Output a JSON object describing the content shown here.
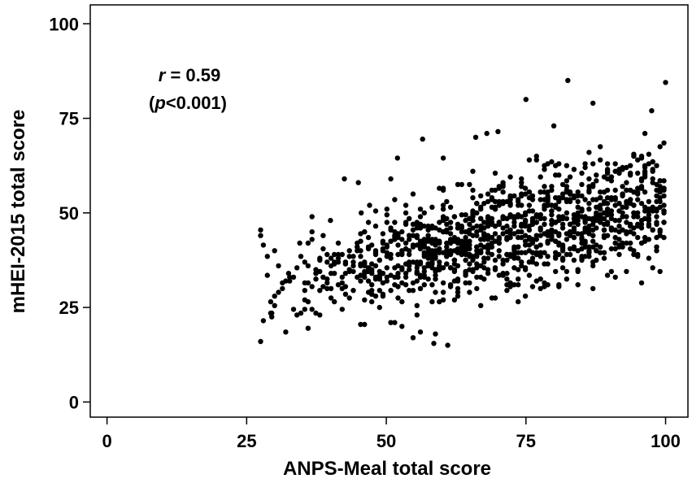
{
  "chart_data": {
    "type": "scatter",
    "title": "",
    "xlabel": "ANPS-Meal total score",
    "ylabel": "mHEI-2015 total score",
    "xlim": [
      -3,
      104
    ],
    "ylim": [
      -4,
      105
    ],
    "xticks": [
      0,
      25,
      50,
      75,
      100
    ],
    "yticks": [
      0,
      25,
      50,
      75,
      100
    ],
    "xtick_labels": [
      "0",
      "25",
      "50",
      "75",
      "100"
    ],
    "ytick_labels": [
      "0",
      "25",
      "50",
      "75",
      "100"
    ],
    "grid": false,
    "legend": "none",
    "marker_color": "#000000",
    "annotation": {
      "r_symbol": "r",
      "r_value": " = 0.59",
      "p_open": "(",
      "p_symbol": "p",
      "p_value": "<0.001)"
    },
    "sampling": {
      "note_x_column_step": 0.67,
      "outliers": [
        [
          27.5,
          16
        ],
        [
          58.5,
          15.5
        ],
        [
          61,
          15
        ],
        [
          82.5,
          85
        ],
        [
          100,
          84.5
        ],
        [
          87,
          79
        ],
        [
          75,
          80
        ],
        [
          97.5,
          77
        ],
        [
          80,
          73
        ],
        [
          66,
          70
        ],
        [
          68,
          71
        ],
        [
          70,
          71.5
        ],
        [
          52,
          64.5
        ],
        [
          56.5,
          69.5
        ],
        [
          42.5,
          59
        ],
        [
          45,
          58
        ],
        [
          47,
          52
        ],
        [
          45.5,
          50
        ],
        [
          40,
          48
        ],
        [
          27.5,
          45.5
        ],
        [
          27.5,
          44
        ],
        [
          30,
          40
        ],
        [
          32.5,
          34
        ],
        [
          34.5,
          42
        ],
        [
          29.5,
          23.5
        ],
        [
          29.5,
          22.5
        ]
      ]
    }
  }
}
